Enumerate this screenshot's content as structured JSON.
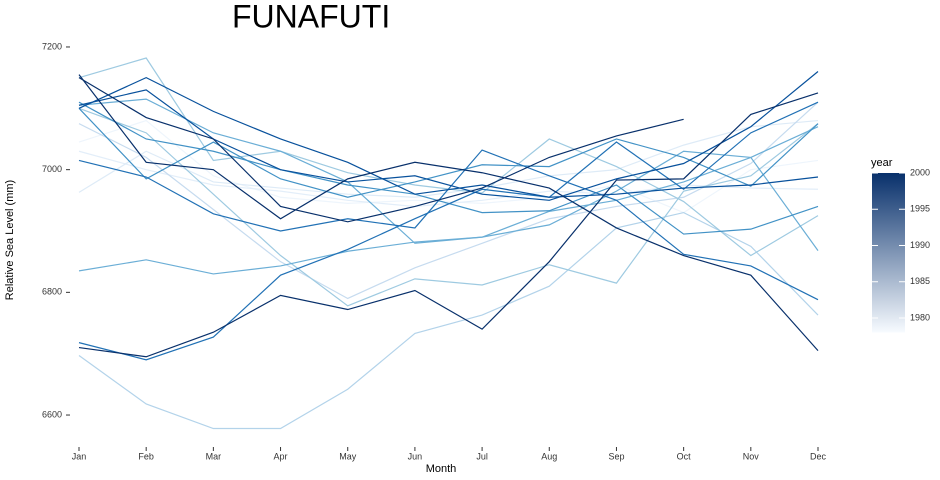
{
  "chart_data": {
    "type": "line",
    "title": "FUNAFUTI",
    "xlabel": "Month",
    "ylabel": "Relative Sea Level (mm)",
    "categories": [
      "Jan",
      "Feb",
      "Mar",
      "Apr",
      "May",
      "Jun",
      "Jul",
      "Aug",
      "Sep",
      "Oct",
      "Nov",
      "Dec"
    ],
    "ylim": [
      6550,
      7220
    ],
    "yticks": [
      6600,
      6800,
      7000,
      7200
    ],
    "grid": false,
    "colorbar": {
      "title": "year",
      "lim": [
        1978,
        2000
      ],
      "ticks": [
        1980,
        1985,
        1990,
        1995,
        2000
      ],
      "colors": [
        "#f7fbff",
        "#08306b"
      ]
    },
    "series": [
      {
        "color": "#eef5fc",
        "values": [
          7045,
          7080,
          6990,
          6955,
          6945,
          6950,
          6945,
          6955,
          6975,
          6930,
          7000,
          7015
        ]
      },
      {
        "color": "#e3eef9",
        "values": [
          7030,
          7000,
          6975,
          6965,
          6950,
          6940,
          6950,
          6965,
          6960,
          6975,
          6970,
          6968
        ]
      },
      {
        "color": "#deebf7",
        "values": [
          6963,
          7030,
          6980,
          6970,
          6960,
          6955,
          6970,
          6990,
          7000,
          7040,
          7070,
          7080
        ]
      },
      {
        "color": "#c6dbef",
        "values": [
          7075,
          7020,
          6935,
          6850,
          6790,
          6840,
          6880,
          6920,
          6940,
          6955,
          7010,
          7110
        ]
      },
      {
        "color": "#b3d3ea",
        "values": [
          6697,
          6618,
          6578,
          6578,
          6642,
          6733,
          6763,
          6810,
          6905,
          6930,
          6875,
          6763
        ]
      },
      {
        "color": "#9ecae1",
        "values": [
          7100,
          7060,
          6960,
          6860,
          6778,
          6822,
          6812,
          6845,
          6815,
          6965,
          6990,
          7075
        ]
      },
      {
        "color": "#9ecae1",
        "values": [
          7150,
          7182,
          7015,
          7030,
          6995,
          6975,
          6962,
          7050,
          7005,
          6948,
          6860,
          6925
        ]
      },
      {
        "color": "#6baed6",
        "values": [
          7105,
          7115,
          7060,
          7030,
          6980,
          6880,
          6890,
          6932,
          6950,
          6980,
          7020,
          7070
        ]
      },
      {
        "color": "#6baed6",
        "values": [
          6835,
          6853,
          6830,
          6843,
          6867,
          6882,
          6890,
          6910,
          6965,
          7030,
          7020,
          6868
        ]
      },
      {
        "color": "#4292c6",
        "values": [
          7100,
          6985,
          7045,
          6985,
          6955,
          6980,
          7008,
          7005,
          7050,
          7020,
          6973,
          7075
        ]
      },
      {
        "color": "#4292c6",
        "values": [
          7110,
          7050,
          7030,
          7000,
          6975,
          6960,
          6930,
          6933,
          6975,
          6895,
          6903,
          6940
        ]
      },
      {
        "color": "#2171b5",
        "values": [
          7015,
          6988,
          6928,
          6900,
          6920,
          6905,
          7032,
          6990,
          6950,
          6862,
          6843,
          6788
        ]
      },
      {
        "color": "#2171b5",
        "values": [
          6718,
          6690,
          6727,
          6828,
          6870,
          6920,
          6968,
          6955,
          7045,
          6968,
          7060,
          7110
        ]
      },
      {
        "color": "#08519c",
        "values": [
          7105,
          7130,
          7050,
          7000,
          6980,
          6990,
          6960,
          6950,
          6985,
          7010,
          7070,
          7160
        ]
      },
      {
        "color": "#08519c",
        "values": [
          7100,
          7150,
          7095,
          7050,
          7012,
          6960,
          6975,
          6955,
          6960,
          6970,
          6975,
          6988
        ]
      },
      {
        "color": "#08306b",
        "values": [
          7155,
          7012,
          7000,
          6920,
          6985,
          7012,
          6995,
          6970,
          6905,
          6860,
          6828,
          6705
        ]
      },
      {
        "color": "#08306b",
        "values": [
          6710,
          6695,
          6735,
          6795,
          6772,
          6803,
          6740,
          6850,
          6983,
          6985,
          7090,
          7125
        ]
      },
      {
        "color": "#08306b",
        "values": [
          7150,
          7085,
          7050,
          6940,
          6915,
          6940,
          6970,
          7020,
          7055,
          7082,
          null,
          null
        ]
      }
    ]
  }
}
